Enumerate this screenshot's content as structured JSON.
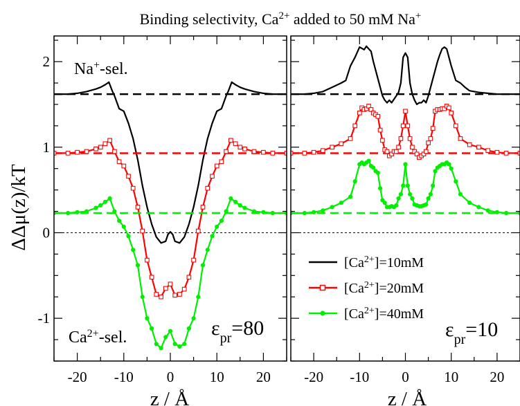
{
  "chart_data": {
    "type": "line",
    "title": {
      "prefix": "Binding selectivity, Ca",
      "sup1": "2+",
      "middle": " added to 50 mM Na",
      "sup2": "+"
    },
    "ylabel": "ΔΔμ(z)/kT",
    "xlabel": "z / Å",
    "xlim": [
      -25,
      25
    ],
    "ylim": [
      -1.5,
      2.3
    ],
    "x_ticks": [
      -20,
      -10,
      0,
      10,
      20
    ],
    "x_tick_labels": [
      "-20",
      "-10",
      "0",
      "10",
      "20"
    ],
    "y_ticks": [
      -1,
      0,
      1,
      2
    ],
    "y_tick_labels": [
      "-1",
      "0",
      "1",
      "2"
    ],
    "zero_line": {
      "y": 0,
      "color": "#000000",
      "style": "dashed"
    },
    "annotations": {
      "na_sel": {
        "base": "Na",
        "sup": "+",
        "suffix": "-sel."
      },
      "ca_sel": {
        "base": "Ca",
        "sup": "2+",
        "suffix": "-sel."
      }
    },
    "legend": {
      "placement": "bottom-left of right panel",
      "entries": [
        {
          "base": "[Ca",
          "sup": "2+",
          "suffix": "]=10mM",
          "color": "#000000",
          "marker": "none"
        },
        {
          "base": "[Ca",
          "sup": "2+",
          "suffix": "]=20mM",
          "color": "#ff0000",
          "marker": "open-square"
        },
        {
          "base": "[Ca",
          "sup": "2+",
          "suffix": "]=40mM",
          "color": "#00ee00",
          "marker": "filled-circle"
        }
      ]
    },
    "panels": [
      {
        "eps": {
          "symbol": "ε",
          "sub": "pr",
          "value": "=80"
        },
        "series": [
          {
            "color": "#000000",
            "marker": "none",
            "baseline": 1.62,
            "x": [
              -25,
              -22,
              -20,
              -18,
              -16,
              -15,
              -14,
              -13.2,
              -12.5,
              -12,
              -11,
              -10,
              -9,
              -8,
              -7,
              -6,
              -5,
              -4,
              -3,
              -2,
              -1,
              -0.5,
              0,
              0.5,
              1,
              2,
              3,
              4,
              5,
              6,
              7,
              8,
              9,
              10,
              11,
              12,
              12.5,
              13.2,
              14,
              15,
              16,
              18,
              20,
              22,
              25
            ],
            "y": [
              1.62,
              1.62,
              1.63,
              1.65,
              1.68,
              1.7,
              1.73,
              1.76,
              1.66,
              1.6,
              1.45,
              1.42,
              1.28,
              1.1,
              0.85,
              0.55,
              0.3,
              0.1,
              -0.05,
              -0.12,
              -0.1,
              -0.02,
              0.01,
              -0.02,
              -0.1,
              -0.12,
              -0.05,
              0.1,
              0.3,
              0.55,
              0.85,
              1.1,
              1.28,
              1.42,
              1.45,
              1.6,
              1.66,
              1.76,
              1.73,
              1.7,
              1.68,
              1.65,
              1.63,
              1.62,
              1.62
            ]
          },
          {
            "color": "#ff0000",
            "marker": "square",
            "baseline": 0.93,
            "x": [
              -25,
              -22,
              -20,
              -18,
              -16,
              -15,
              -14,
              -13,
              -12,
              -11,
              -10,
              -9,
              -8,
              -7,
              -6,
              -5,
              -4,
              -3,
              -2,
              -1,
              0,
              1,
              2,
              3,
              4,
              5,
              6,
              7,
              8,
              9,
              10,
              11,
              12,
              13,
              14,
              15,
              16,
              18,
              20,
              22,
              25
            ],
            "y": [
              0.93,
              0.93,
              0.94,
              0.95,
              0.98,
              1.0,
              1.04,
              1.08,
              0.95,
              0.83,
              0.78,
              0.66,
              0.52,
              0.3,
              0.02,
              -0.32,
              -0.52,
              -0.72,
              -0.75,
              -0.65,
              -0.6,
              -0.73,
              -0.72,
              -0.66,
              -0.52,
              -0.32,
              0.02,
              0.3,
              0.52,
              0.66,
              0.78,
              0.83,
              0.95,
              1.08,
              1.04,
              1.0,
              0.98,
              0.95,
              0.94,
              0.93,
              0.93
            ]
          },
          {
            "color": "#00ee00",
            "marker": "circle",
            "baseline": 0.23,
            "x": [
              -25,
              -22,
              -20,
              -18,
              -16,
              -15,
              -14,
              -13,
              -12,
              -11,
              -10,
              -9,
              -8,
              -7,
              -6,
              -5,
              -4,
              -3,
              -2,
              -1,
              0,
              1,
              2,
              3,
              4,
              5,
              6,
              7,
              8,
              9,
              10,
              11,
              12,
              13,
              14,
              15,
              16,
              18,
              20,
              22,
              25
            ],
            "y": [
              0.23,
              0.23,
              0.24,
              0.25,
              0.29,
              0.32,
              0.36,
              0.4,
              0.25,
              0.14,
              0.07,
              -0.04,
              -0.2,
              -0.38,
              -0.75,
              -1.0,
              -1.12,
              -1.3,
              -1.35,
              -1.22,
              -1.15,
              -1.3,
              -1.33,
              -1.3,
              -1.12,
              -1.0,
              -0.75,
              -0.38,
              -0.2,
              -0.04,
              0.07,
              0.14,
              0.25,
              0.4,
              0.36,
              0.32,
              0.29,
              0.25,
              0.24,
              0.23,
              0.23
            ]
          }
        ]
      },
      {
        "eps": {
          "symbol": "ε",
          "sub": "pr",
          "value": "=10"
        },
        "series": [
          {
            "color": "#000000",
            "marker": "none",
            "baseline": 1.62,
            "x": [
              -25,
              -22,
              -20,
              -18,
              -16,
              -14,
              -13,
              -12,
              -11,
              -10,
              -9,
              -8.5,
              -8,
              -7.5,
              -7,
              -6,
              -5,
              -4.5,
              -4,
              -3.5,
              -3,
              -2,
              -1.5,
              -1,
              -0.5,
              0,
              0.5,
              1,
              1.5,
              2,
              2.5,
              3,
              3.5,
              4,
              4.5,
              5,
              6,
              7,
              7.5,
              8,
              8.5,
              9,
              9.5,
              10,
              11,
              12,
              13,
              14,
              16,
              18,
              20,
              22,
              25
            ],
            "y": [
              1.62,
              1.62,
              1.63,
              1.65,
              1.7,
              1.75,
              1.78,
              1.95,
              2.05,
              2.17,
              2.14,
              2.18,
              2.15,
              2.12,
              2.0,
              1.8,
              1.6,
              1.55,
              1.52,
              1.55,
              1.52,
              1.6,
              1.64,
              1.75,
              2.05,
              2.1,
              2.05,
              1.75,
              1.62,
              1.55,
              1.5,
              1.52,
              1.52,
              1.55,
              1.52,
              1.6,
              1.8,
              2.0,
              2.08,
              2.15,
              2.17,
              2.15,
              2.05,
              1.95,
              1.78,
              1.75,
              1.7,
              1.66,
              1.64,
              1.63,
              1.62,
              1.62,
              1.62
            ]
          },
          {
            "color": "#ff0000",
            "marker": "square",
            "baseline": 0.93,
            "x": [
              -25,
              -22,
              -20,
              -18,
              -16,
              -14,
              -12,
              -11,
              -10,
              -9.5,
              -9,
              -8.5,
              -8,
              -7.5,
              -7,
              -6.5,
              -6,
              -5.5,
              -5,
              -4.5,
              -4,
              -3.5,
              -3,
              -2.5,
              -2,
              -1.5,
              -1,
              -0.5,
              0,
              0.5,
              1,
              1.5,
              2,
              2.5,
              3,
              3.5,
              4,
              4.5,
              5,
              5.5,
              6,
              6.5,
              7,
              7.5,
              8,
              8.5,
              9,
              9.5,
              10,
              11,
              12,
              14,
              16,
              18,
              20,
              22,
              25
            ],
            "y": [
              0.93,
              0.93,
              0.94,
              0.96,
              1.0,
              1.04,
              1.1,
              1.25,
              1.4,
              1.46,
              1.44,
              1.45,
              1.48,
              1.44,
              1.4,
              1.38,
              1.36,
              1.2,
              1.08,
              0.97,
              0.95,
              0.9,
              0.92,
              0.95,
              0.95,
              1.0,
              1.1,
              1.25,
              1.42,
              1.25,
              1.1,
              1.0,
              0.95,
              0.92,
              0.88,
              0.9,
              0.92,
              0.95,
              1.05,
              1.1,
              1.22,
              1.42,
              1.44,
              1.44,
              1.45,
              1.45,
              1.48,
              1.46,
              1.4,
              1.25,
              1.1,
              1.03,
              1.0,
              0.96,
              0.94,
              0.93,
              0.93
            ]
          },
          {
            "color": "#00ee00",
            "marker": "circle",
            "baseline": 0.23,
            "x": [
              -25,
              -22,
              -20,
              -18,
              -16,
              -14,
              -12,
              -11,
              -10,
              -9.5,
              -9,
              -8.5,
              -8,
              -7.5,
              -7,
              -6.5,
              -6,
              -5.5,
              -5,
              -4.5,
              -4,
              -3.5,
              -3,
              -2.5,
              -2,
              -1.5,
              -1,
              -0.5,
              0,
              0.5,
              1,
              1.5,
              2,
              2.5,
              3,
              3.5,
              4,
              4.5,
              5,
              5.5,
              6,
              6.5,
              7,
              7.5,
              8,
              8.5,
              9,
              9.5,
              10,
              11,
              12,
              14,
              16,
              18,
              20,
              22,
              25
            ],
            "y": [
              0.23,
              0.23,
              0.24,
              0.26,
              0.3,
              0.35,
              0.42,
              0.6,
              0.8,
              0.82,
              0.8,
              0.82,
              0.84,
              0.78,
              0.76,
              0.72,
              0.7,
              0.52,
              0.38,
              0.35,
              0.3,
              0.3,
              0.31,
              0.3,
              0.32,
              0.4,
              0.45,
              0.55,
              0.8,
              0.55,
              0.45,
              0.4,
              0.33,
              0.32,
              0.31,
              0.31,
              0.32,
              0.33,
              0.4,
              0.45,
              0.55,
              0.72,
              0.76,
              0.78,
              0.8,
              0.8,
              0.82,
              0.8,
              0.75,
              0.6,
              0.45,
              0.35,
              0.3,
              0.26,
              0.24,
              0.23,
              0.23
            ]
          }
        ]
      }
    ]
  }
}
